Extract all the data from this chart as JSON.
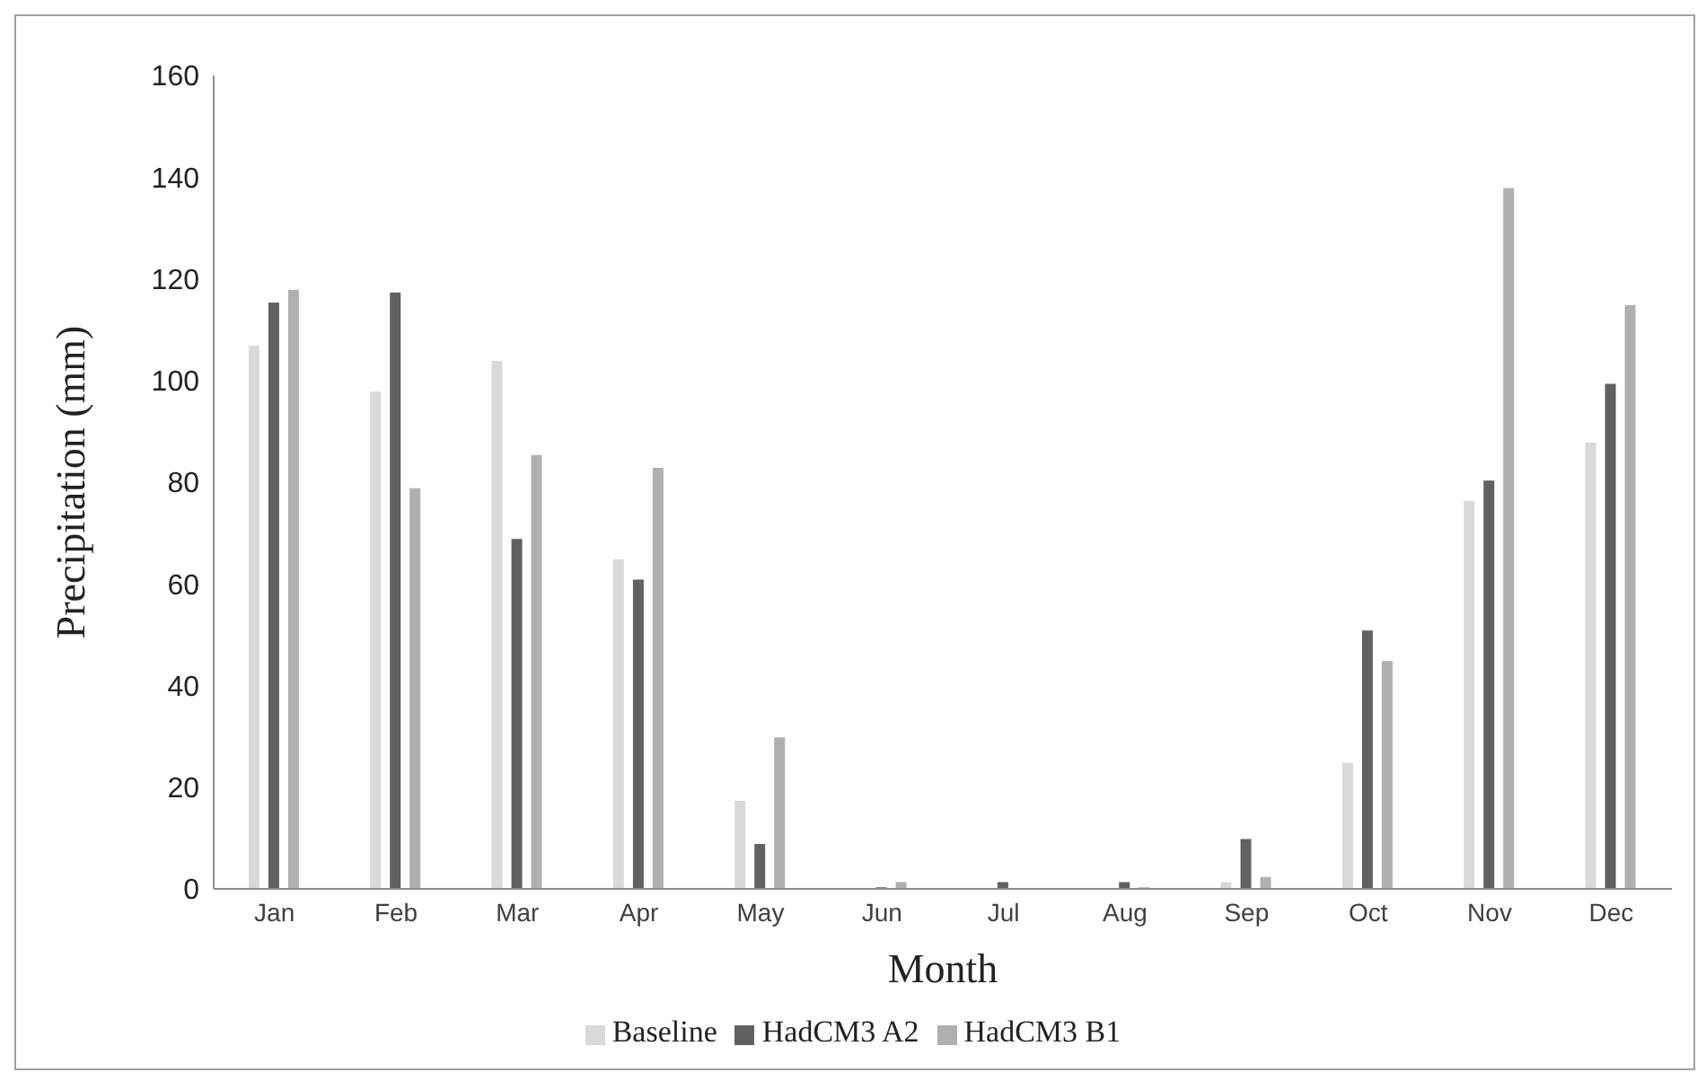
{
  "chart_data": {
    "type": "bar",
    "xlabel": "Month",
    "ylabel": "Precipitation (mm)",
    "categories": [
      "Jan",
      "Feb",
      "Mar",
      "Apr",
      "May",
      "Jun",
      "Jul",
      "Aug",
      "Sep",
      "Oct",
      "Nov",
      "Dec"
    ],
    "series": [
      {
        "name": "Baseline",
        "color": "#d9d9d9",
        "values": [
          107,
          98,
          104,
          65,
          17.5,
          0,
          0,
          0,
          1.5,
          25,
          76.5,
          88
        ]
      },
      {
        "name": "HadCM3 A2",
        "color": "#616161",
        "values": [
          115.5,
          117.5,
          69,
          61,
          9,
          0.5,
          1.5,
          1.5,
          10,
          51,
          80.5,
          99.5
        ]
      },
      {
        "name": "HadCM3 B1",
        "color": "#b0b0b0",
        "values": [
          118,
          79,
          85.5,
          83,
          30,
          1.5,
          0,
          0.5,
          2.5,
          45,
          138,
          115
        ]
      }
    ],
    "ylim": [
      0,
      160
    ],
    "yticks": [
      0,
      20,
      40,
      60,
      80,
      100,
      120,
      140,
      160
    ],
    "grid": false,
    "legend": "bottom"
  }
}
